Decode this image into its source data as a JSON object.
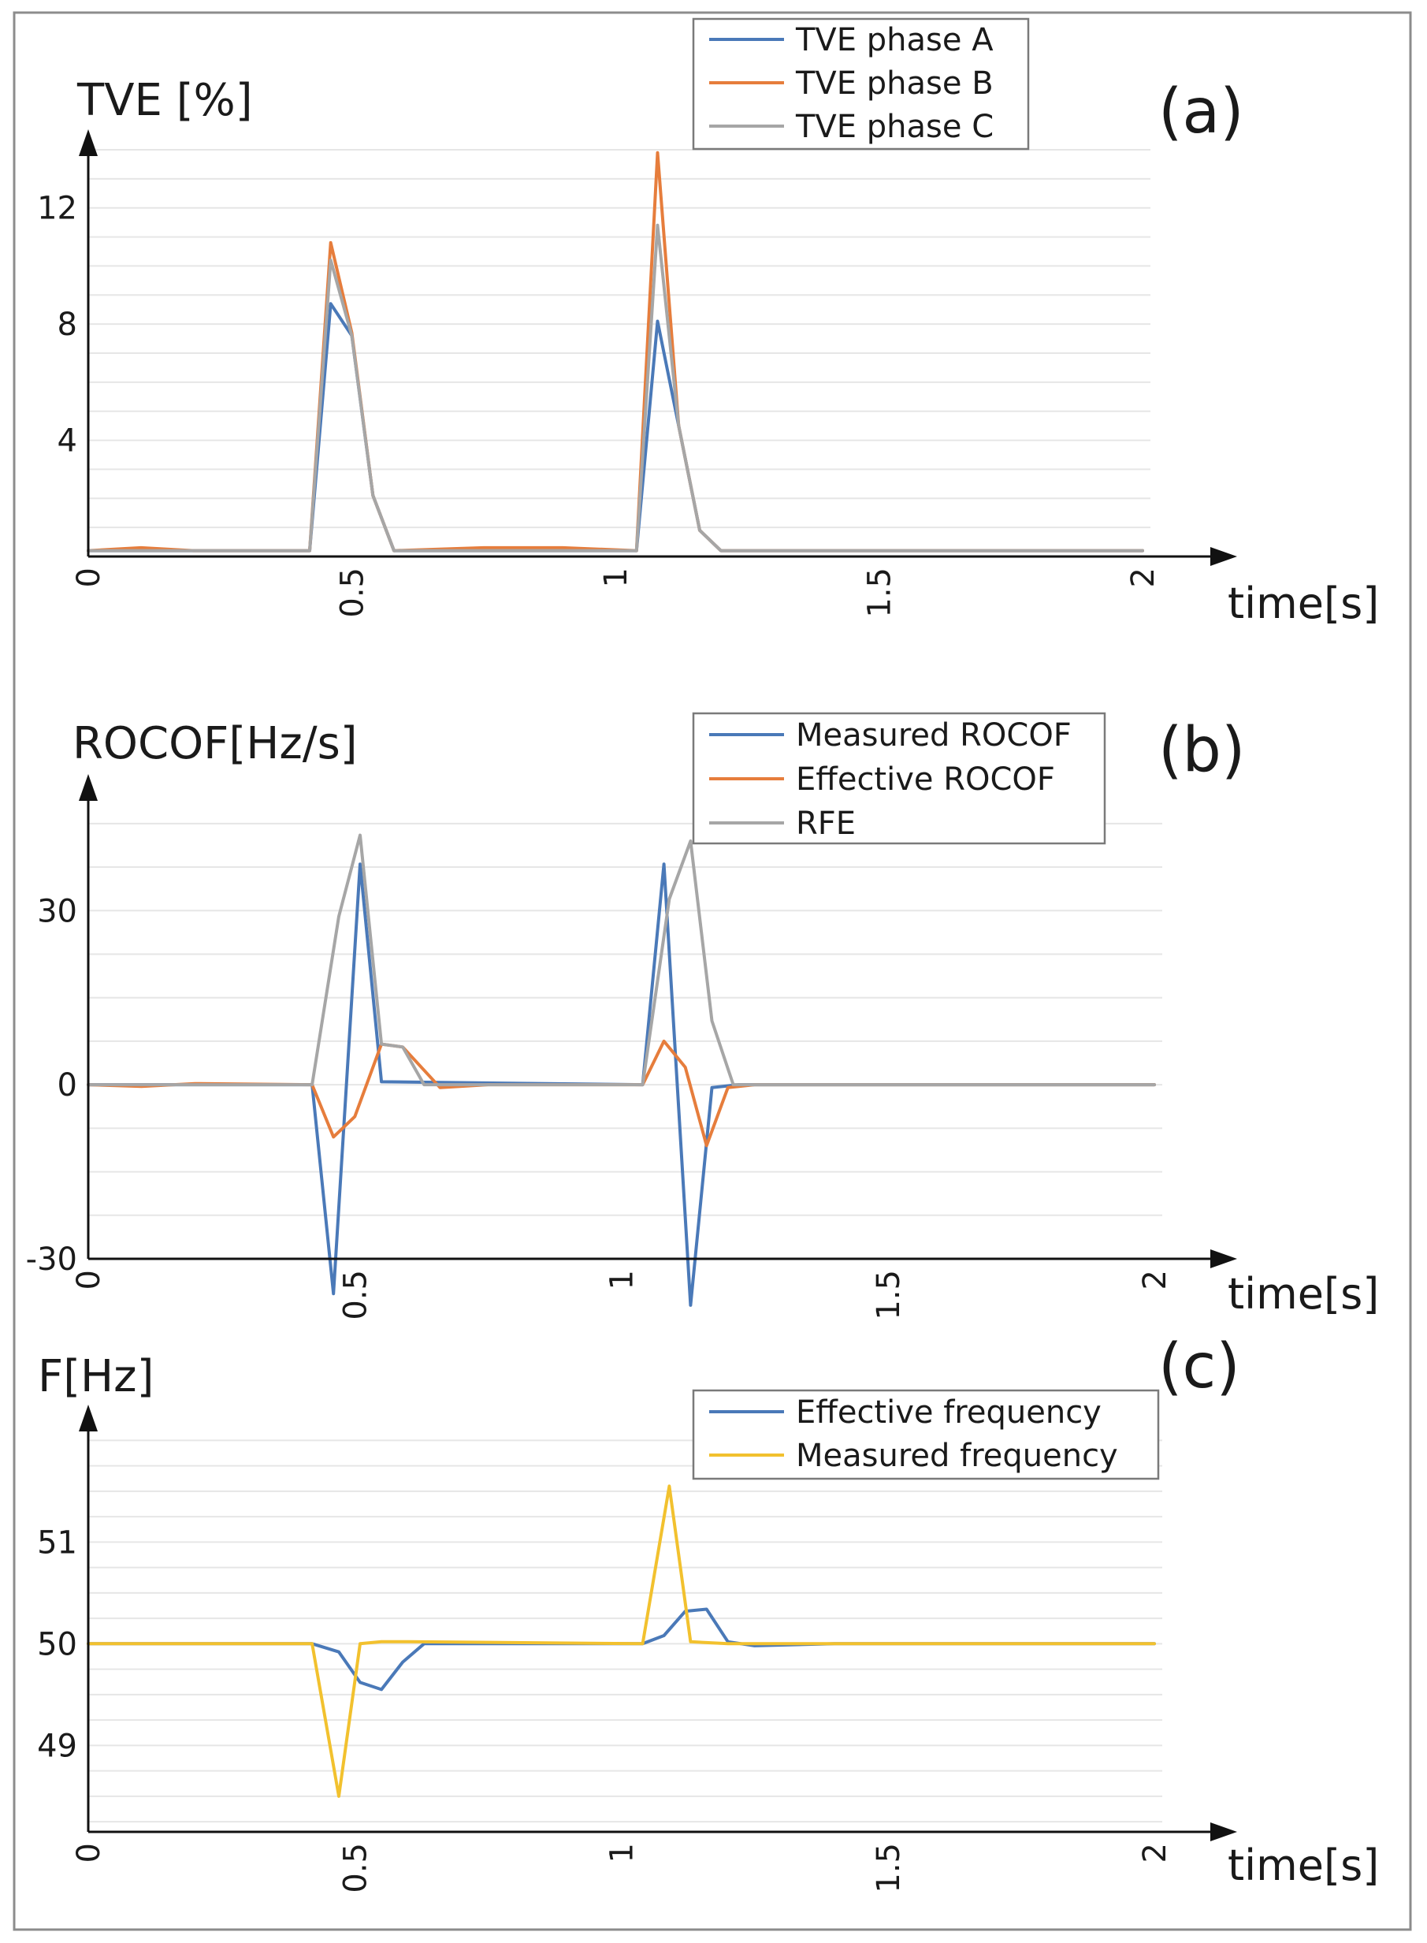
{
  "colors": {
    "blue": "#4a79b8",
    "orange": "#e67d3c",
    "gray": "#a6a6a6",
    "yellow": "#f2c12e",
    "grid": "#e6e6e6",
    "axis": "#111111"
  },
  "chart_data": [
    {
      "id": "a",
      "type": "line",
      "panel_label": "(a)",
      "ylabel": "TVE [%]",
      "xlabel": "time[s]",
      "x_ticks": [
        "0",
        "0.5",
        "1",
        "1.5",
        "2"
      ],
      "x_tick_values": [
        0,
        0.5,
        1,
        1.5,
        2
      ],
      "y_ticks": [
        "4",
        "8",
        "12"
      ],
      "y_tick_values": [
        4,
        8,
        12
      ],
      "xlim": [
        0,
        2
      ],
      "ylim": [
        0,
        14
      ],
      "grid": true,
      "legend_position": "top-right",
      "series": [
        {
          "name": "TVE phase A",
          "color": "blue",
          "points": [
            [
              0,
              0.2
            ],
            [
              0.2,
              0.2
            ],
            [
              0.42,
              0.2
            ],
            [
              0.46,
              8.7
            ],
            [
              0.5,
              7.6
            ],
            [
              0.54,
              2.1
            ],
            [
              0.58,
              0.2
            ],
            [
              0.8,
              0.2
            ],
            [
              1.0,
              0.2
            ],
            [
              1.04,
              0.2
            ],
            [
              1.08,
              8.1
            ],
            [
              1.12,
              4.5
            ],
            [
              1.16,
              0.9
            ],
            [
              1.2,
              0.2
            ],
            [
              1.6,
              0.2
            ],
            [
              2.0,
              0.2
            ]
          ]
        },
        {
          "name": "TVE phase B",
          "color": "orange",
          "points": [
            [
              0,
              0.2
            ],
            [
              0.1,
              0.3
            ],
            [
              0.2,
              0.2
            ],
            [
              0.42,
              0.2
            ],
            [
              0.46,
              10.8
            ],
            [
              0.5,
              7.7
            ],
            [
              0.54,
              2.1
            ],
            [
              0.58,
              0.2
            ],
            [
              0.75,
              0.3
            ],
            [
              0.9,
              0.3
            ],
            [
              1.04,
              0.2
            ],
            [
              1.08,
              13.9
            ],
            [
              1.12,
              4.5
            ],
            [
              1.16,
              0.9
            ],
            [
              1.2,
              0.2
            ],
            [
              2.0,
              0.2
            ]
          ]
        },
        {
          "name": "TVE phase C",
          "color": "gray",
          "points": [
            [
              0,
              0.2
            ],
            [
              0.42,
              0.2
            ],
            [
              0.46,
              10.2
            ],
            [
              0.5,
              7.6
            ],
            [
              0.54,
              2.1
            ],
            [
              0.58,
              0.2
            ],
            [
              1.04,
              0.2
            ],
            [
              1.08,
              11.4
            ],
            [
              1.12,
              4.5
            ],
            [
              1.16,
              0.9
            ],
            [
              1.2,
              0.2
            ],
            [
              2.0,
              0.2
            ]
          ]
        }
      ]
    },
    {
      "id": "b",
      "type": "line",
      "panel_label": "(b)",
      "ylabel": "ROCOF[Hz/s]",
      "xlabel": "time[s]",
      "x_ticks": [
        "0",
        "0.5",
        "1",
        "1.5",
        "2"
      ],
      "x_tick_values": [
        0,
        0.5,
        1,
        1.5,
        2
      ],
      "y_ticks": [
        "-30",
        "0",
        "30"
      ],
      "y_tick_values": [
        -30,
        0,
        30
      ],
      "xlim": [
        0,
        2
      ],
      "ylim": [
        -30,
        50
      ],
      "grid": true,
      "legend_position": "top-right",
      "series": [
        {
          "name": "Measured ROCOF",
          "color": "blue",
          "points": [
            [
              0,
              0
            ],
            [
              0.42,
              0
            ],
            [
              0.46,
              -36
            ],
            [
              0.51,
              38
            ],
            [
              0.55,
              0.5
            ],
            [
              1.04,
              0
            ],
            [
              1.08,
              38
            ],
            [
              1.13,
              -38
            ],
            [
              1.17,
              -0.5
            ],
            [
              1.22,
              0
            ],
            [
              2.0,
              0
            ]
          ]
        },
        {
          "name": "Effective ROCOF",
          "color": "orange",
          "points": [
            [
              0,
              0
            ],
            [
              0.1,
              -0.3
            ],
            [
              0.2,
              0.2
            ],
            [
              0.42,
              0
            ],
            [
              0.46,
              -9
            ],
            [
              0.5,
              -5.5
            ],
            [
              0.55,
              7
            ],
            [
              0.59,
              6.5
            ],
            [
              0.66,
              -0.5
            ],
            [
              0.75,
              0
            ],
            [
              1.04,
              0
            ],
            [
              1.08,
              7.5
            ],
            [
              1.12,
              3
            ],
            [
              1.16,
              -10.5
            ],
            [
              1.2,
              -0.5
            ],
            [
              1.25,
              0
            ],
            [
              2.0,
              0
            ]
          ]
        },
        {
          "name": "RFE",
          "color": "gray",
          "points": [
            [
              0,
              0
            ],
            [
              0.42,
              0
            ],
            [
              0.47,
              29
            ],
            [
              0.51,
              43
            ],
            [
              0.55,
              7
            ],
            [
              0.59,
              6.5
            ],
            [
              0.63,
              0
            ],
            [
              1.04,
              0
            ],
            [
              1.09,
              32
            ],
            [
              1.13,
              42
            ],
            [
              1.17,
              11
            ],
            [
              1.21,
              0
            ],
            [
              2.0,
              0
            ]
          ]
        }
      ]
    },
    {
      "id": "c",
      "type": "line",
      "panel_label": "(c)",
      "ylabel": "F[Hz]",
      "xlabel": "time[s]",
      "x_ticks": [
        "0",
        "0.5",
        "1",
        "1.5",
        "2"
      ],
      "x_tick_values": [
        0,
        0.5,
        1,
        1.5,
        2
      ],
      "y_ticks": [
        "49",
        "50",
        "51"
      ],
      "y_tick_values": [
        49,
        50,
        51
      ],
      "xlim": [
        0,
        2
      ],
      "ylim": [
        48.15,
        52.15
      ],
      "grid": true,
      "legend_position": "top-right",
      "series": [
        {
          "name": "Effective frequency",
          "color": "blue",
          "points": [
            [
              0,
              50
            ],
            [
              0.42,
              50
            ],
            [
              0.47,
              49.92
            ],
            [
              0.51,
              49.62
            ],
            [
              0.55,
              49.55
            ],
            [
              0.59,
              49.82
            ],
            [
              0.63,
              50
            ],
            [
              0.8,
              50
            ],
            [
              1.04,
              50
            ],
            [
              1.08,
              50.08
            ],
            [
              1.12,
              50.32
            ],
            [
              1.16,
              50.34
            ],
            [
              1.2,
              50.02
            ],
            [
              1.25,
              49.98
            ],
            [
              1.4,
              50
            ],
            [
              2.0,
              50
            ]
          ]
        },
        {
          "name": "Measured frequency",
          "color": "yellow",
          "points": [
            [
              0,
              50
            ],
            [
              0.42,
              50
            ],
            [
              0.47,
              48.5
            ],
            [
              0.51,
              50
            ],
            [
              0.55,
              50.02
            ],
            [
              0.6,
              50.02
            ],
            [
              1.04,
              50
            ],
            [
              1.09,
              51.55
            ],
            [
              1.13,
              50.02
            ],
            [
              1.2,
              50
            ],
            [
              2.0,
              50
            ]
          ]
        }
      ]
    }
  ]
}
